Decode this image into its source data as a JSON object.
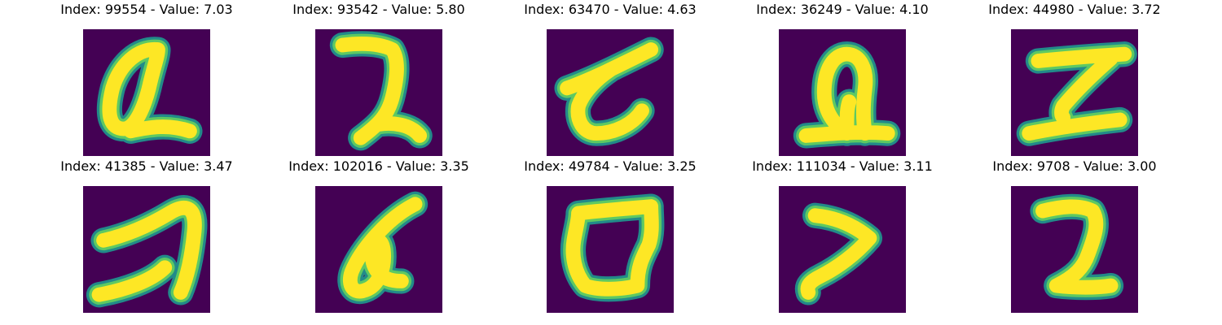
{
  "figure": {
    "colormap": {
      "background": "#440154",
      "edge": "#21918c",
      "mid": "#5ec962",
      "peak": "#fde725"
    },
    "panels": [
      {
        "title": "Index: 99554 - Value: 7.03",
        "index": 99554,
        "value": 7.03,
        "glyph": "loop-digit-icon"
      },
      {
        "title": "Index: 93542 - Value: 5.80",
        "index": 93542,
        "value": 5.8,
        "glyph": "hook-digit-icon"
      },
      {
        "title": "Index: 63470 - Value: 4.63",
        "index": 63470,
        "value": 4.63,
        "glyph": "crossed-t-digit-icon"
      },
      {
        "title": "Index: 36249 - Value: 4.10",
        "index": 36249,
        "value": 4.1,
        "glyph": "looped-base-digit-icon"
      },
      {
        "title": "Index: 44980 - Value: 3.72",
        "index": 44980,
        "value": 3.72,
        "glyph": "z-digit-icon"
      },
      {
        "title": "Index: 41385 - Value: 3.47",
        "index": 41385,
        "value": 3.47,
        "glyph": "arc-digit-icon"
      },
      {
        "title": "Index: 102016 - Value: 3.35",
        "index": 102016,
        "value": 3.35,
        "glyph": "slanted-loop-digit-icon"
      },
      {
        "title": "Index: 49784 - Value: 3.25",
        "index": 49784,
        "value": 3.25,
        "glyph": "ring-digit-icon"
      },
      {
        "title": "Index: 111034 - Value: 3.11",
        "index": 111034,
        "value": 3.11,
        "glyph": "chevron-digit-icon"
      },
      {
        "title": "Index: 9708 - Value: 3.00",
        "index": 9708,
        "value": 3.0,
        "glyph": "two-digit-icon"
      }
    ]
  }
}
